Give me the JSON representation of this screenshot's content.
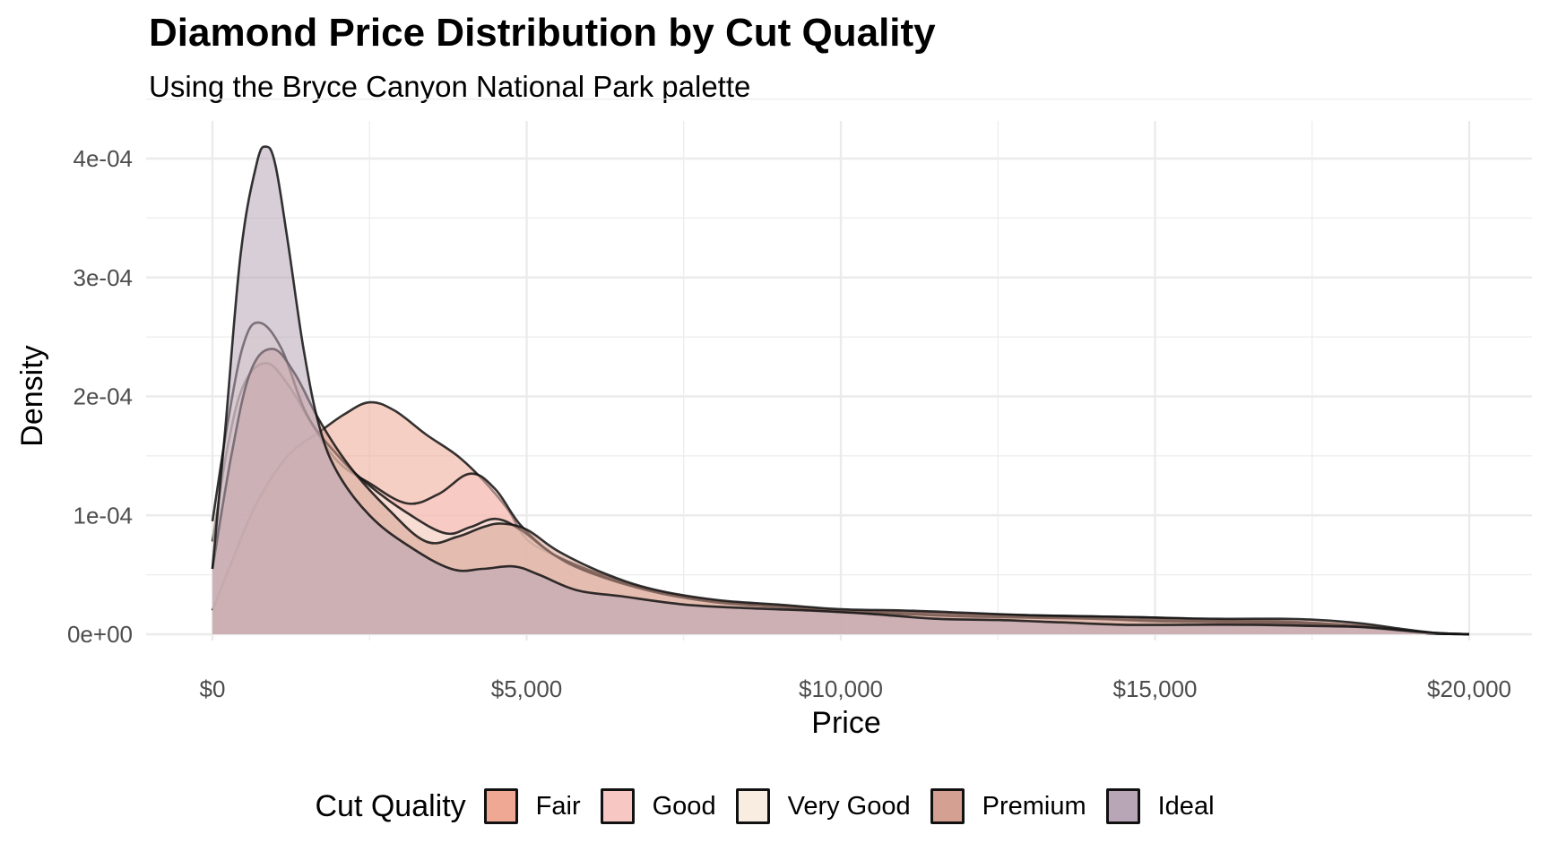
{
  "chart_data": {
    "type": "area",
    "subtype": "density",
    "title": "Diamond Price Distribution by Cut Quality",
    "subtitle": "Using the Bryce Canyon National Park palette",
    "xlabel": "Price",
    "ylabel": "Density",
    "xlim": [
      0,
      20000
    ],
    "ylim": [
      0,
      0.00041
    ],
    "x_ticks": [
      {
        "value": 0,
        "label": "$0"
      },
      {
        "value": 5000,
        "label": "$5,000"
      },
      {
        "value": 10000,
        "label": "$10,000"
      },
      {
        "value": 15000,
        "label": "$15,000"
      },
      {
        "value": 20000,
        "label": "$20,000"
      }
    ],
    "y_ticks": [
      {
        "value": 0,
        "label": "0e+00"
      },
      {
        "value": 0.0001,
        "label": "1e-04"
      },
      {
        "value": 0.0002,
        "label": "2e-04"
      },
      {
        "value": 0.0003,
        "label": "3e-04"
      },
      {
        "value": 0.0004,
        "label": "4e-04"
      }
    ],
    "grid": true,
    "legend": {
      "title": "Cut Quality",
      "position": "bottom"
    },
    "series": [
      {
        "name": "Fair",
        "color": "#eea893",
        "x": [
          0,
          300,
          700,
          1200,
          1700,
          2100,
          2500,
          2900,
          3400,
          3900,
          4300,
          4700,
          5000,
          5500,
          6200,
          7000,
          8000,
          9000,
          10000,
          11000,
          12000,
          13000,
          14000,
          15000,
          16000,
          17000,
          18000,
          18700,
          19300,
          20000
        ],
        "y": [
          2e-05,
          6e-05,
          0.00011,
          0.00015,
          0.00017,
          0.000185,
          0.000195,
          0.000188,
          0.000168,
          0.00015,
          0.00013,
          0.000105,
          8e-05,
          6.5e-05,
          5e-05,
          3.7e-05,
          2.8e-05,
          2.4e-05,
          2e-05,
          1.9e-05,
          1.7e-05,
          1.6e-05,
          1.5e-05,
          1.4e-05,
          1.2e-05,
          1.1e-05,
          8e-06,
          5e-06,
          1e-06,
          0
        ]
      },
      {
        "name": "Good",
        "color": "#f7c8c3",
        "x": [
          0,
          250,
          500,
          850,
          1200,
          1600,
          2000,
          2500,
          3100,
          3600,
          4100,
          4500,
          4900,
          5400,
          6000,
          7000,
          8000,
          9000,
          10000,
          11000,
          12000,
          13000,
          14000,
          15000,
          16000,
          17000,
          18000,
          18700,
          19300,
          20000
        ],
        "y": [
          7.8e-05,
          0.00016,
          0.00021,
          0.000228,
          0.00021,
          0.000175,
          0.000145,
          0.000127,
          0.00011,
          0.000118,
          0.000135,
          0.000122,
          9.2e-05,
          6.8e-05,
          5.2e-05,
          3.6e-05,
          2.7e-05,
          2.3e-05,
          1.9e-05,
          1.7e-05,
          1.5e-05,
          1.4e-05,
          1.3e-05,
          1.2e-05,
          1.1e-05,
          1e-05,
          8e-06,
          5e-06,
          1e-06,
          0
        ]
      },
      {
        "name": "Very Good",
        "color": "#f9ede2",
        "x": [
          0,
          250,
          500,
          750,
          1100,
          1500,
          2000,
          2500,
          3100,
          3700,
          4100,
          4500,
          4900,
          5400,
          6000,
          7000,
          8000,
          9000,
          10000,
          11000,
          12000,
          13000,
          14000,
          15000,
          16000,
          17000,
          18000,
          18700,
          19300,
          20000
        ],
        "y": [
          9.5e-05,
          0.00018,
          0.000245,
          0.000262,
          0.00024,
          0.000185,
          0.00015,
          0.000125,
          0.000102,
          8.5e-05,
          9e-05,
          9.7e-05,
          8.8e-05,
          6.8e-05,
          5.2e-05,
          3.6e-05,
          2.7e-05,
          2.3e-05,
          1.9e-05,
          1.7e-05,
          1.5e-05,
          1.4e-05,
          1.3e-05,
          1.1e-05,
          1e-05,
          9e-06,
          7e-06,
          4e-06,
          1e-06,
          0
        ]
      },
      {
        "name": "Premium",
        "color": "#d3a092",
        "x": [
          0,
          300,
          600,
          950,
          1300,
          1700,
          2200,
          2800,
          3400,
          3900,
          4300,
          4600,
          5000,
          5500,
          6200,
          7000,
          8000,
          9000,
          10000,
          11000,
          12000,
          13000,
          14000,
          15000,
          16000,
          17000,
          17600,
          18300,
          19000,
          19500,
          20000
        ],
        "y": [
          5.5e-05,
          0.00015,
          0.00022,
          0.00024,
          0.00022,
          0.00018,
          0.00014,
          0.000105,
          7.8e-05,
          8.2e-05,
          9e-05,
          9.3e-05,
          8.8e-05,
          7e-05,
          5.2e-05,
          3.8e-05,
          2.9e-05,
          2.5e-05,
          2.1e-05,
          2e-05,
          1.8e-05,
          1.6e-05,
          1.5e-05,
          1.4e-05,
          1.3e-05,
          1.3e-05,
          1.2e-05,
          9e-06,
          4e-06,
          1e-06,
          0
        ]
      },
      {
        "name": "Ideal",
        "color": "#b8a6b6",
        "x": [
          0,
          200,
          450,
          700,
          850,
          1000,
          1200,
          1450,
          1700,
          2000,
          2500,
          3100,
          3800,
          4300,
          4800,
          5200,
          5800,
          6500,
          7500,
          8500,
          9500,
          10500,
          11500,
          12500,
          13500,
          14500,
          15500,
          16500,
          17500,
          18300,
          19000,
          19500,
          20000
        ],
        "y": [
          5.5e-05,
          0.00017,
          0.00032,
          0.000395,
          0.00041,
          0.000395,
          0.00033,
          0.00024,
          0.000175,
          0.000135,
          0.0001,
          7.5e-05,
          5.5e-05,
          5.5e-05,
          5.7e-05,
          5e-05,
          3.7e-05,
          3.2e-05,
          2.5e-05,
          2.2e-05,
          2e-05,
          1.7e-05,
          1.3e-05,
          1.2e-05,
          1e-05,
          8e-06,
          8e-06,
          8e-06,
          7e-06,
          6e-06,
          3e-06,
          1e-06,
          0
        ]
      }
    ]
  }
}
